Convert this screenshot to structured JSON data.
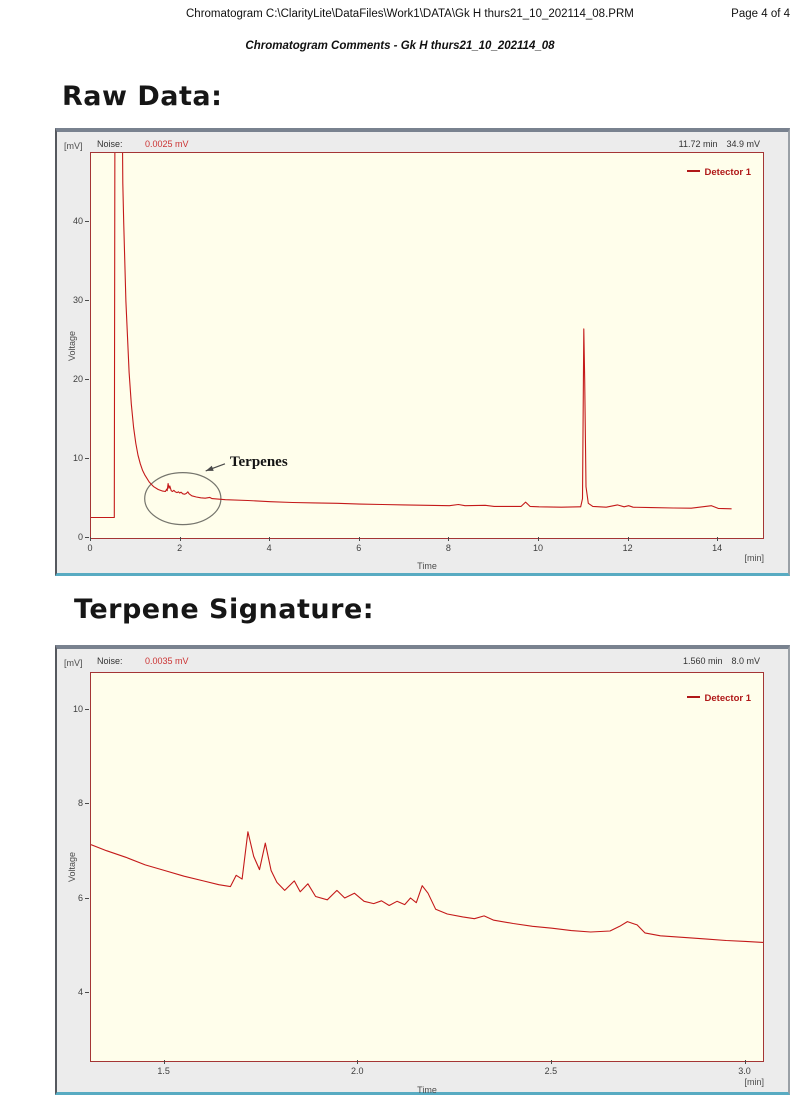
{
  "page": {
    "header_title": "Chromatogram C:\\ClarityLite\\DataFiles\\Work1\\DATA\\Gk H thurs21_10_202114_08.PRM",
    "page_number": "Page 4 of 4",
    "subtitle": "Chromatogram Comments - Gk H thurs21_10_202114_08",
    "section1_heading": "Raw Data:",
    "section2_heading": "Terpene Signature:"
  },
  "colors": {
    "trace": "#c41a1a",
    "plot_background": "#fffeeb",
    "plot_border": "#a43535",
    "panel_background": "#ececec",
    "legend_text": "#b01818",
    "noise_value_text": "#cc3333",
    "annotation_stroke": "#75756d"
  },
  "chart_data": [
    {
      "type": "line",
      "title": "Raw data chromatogram",
      "unit_label": "[mV]",
      "noise_label": "Noise:",
      "noise_value": "0.0025 mV",
      "cursor": {
        "time": "11.72 min",
        "value": "34.9 mV"
      },
      "ylabel": "Voltage",
      "xlabel": "Time",
      "x_unit": "[min]",
      "xlim": [
        0,
        15.0
      ],
      "ylim": [
        0,
        48.8
      ],
      "xticks": [
        0,
        2,
        4,
        6,
        8,
        10,
        12,
        14
      ],
      "xtick_labels": [
        "0",
        "2",
        "4",
        "6",
        "8",
        "10",
        "12",
        "14"
      ],
      "yticks": [
        0,
        10,
        20,
        30,
        40
      ],
      "ytick_labels": [
        "0",
        "10",
        "20",
        "30",
        "40"
      ],
      "grid": false,
      "legend_position": "top-right",
      "annotation": {
        "label": "Terpenes",
        "ellipse_center": [
          2.05,
          5.0
        ],
        "ellipse_radii": [
          0.85,
          3.3
        ],
        "arrow_from": [
          2.99,
          9.4
        ],
        "arrow_to": [
          2.56,
          8.5
        ],
        "label_pos": [
          3.1,
          10.7
        ]
      },
      "series": [
        {
          "name": "Detector 1",
          "color": "#c41a1a",
          "points": [
            [
              0,
              2.6
            ],
            [
              0.3,
              2.6
            ],
            [
              0.52,
              2.6
            ],
            [
              0.535,
              60
            ],
            [
              0.69,
              60
            ],
            [
              0.71,
              45
            ],
            [
              0.73,
              40
            ],
            [
              0.78,
              30
            ],
            [
              0.85,
              21
            ],
            [
              0.9,
              17
            ],
            [
              0.95,
              14
            ],
            [
              1.0,
              12
            ],
            [
              1.05,
              10.5
            ],
            [
              1.1,
              9.4
            ],
            [
              1.15,
              8.6
            ],
            [
              1.2,
              8.0
            ],
            [
              1.3,
              7.1
            ],
            [
              1.4,
              6.5
            ],
            [
              1.5,
              6.15
            ],
            [
              1.6,
              5.95
            ],
            [
              1.66,
              5.9
            ],
            [
              1.69,
              6.2
            ],
            [
              1.7,
              6.0
            ],
            [
              1.72,
              6.9
            ],
            [
              1.74,
              6.3
            ],
            [
              1.76,
              6.6
            ],
            [
              1.79,
              6.0
            ],
            [
              1.82,
              5.9
            ],
            [
              1.85,
              6.05
            ],
            [
              1.88,
              5.85
            ],
            [
              1.92,
              5.75
            ],
            [
              1.95,
              5.85
            ],
            [
              1.98,
              5.7
            ],
            [
              2.01,
              5.8
            ],
            [
              2.05,
              5.6
            ],
            [
              2.09,
              5.55
            ],
            [
              2.13,
              5.65
            ],
            [
              2.16,
              5.85
            ],
            [
              2.19,
              5.6
            ],
            [
              2.25,
              5.35
            ],
            [
              2.35,
              5.2
            ],
            [
              2.45,
              5.1
            ],
            [
              2.55,
              5.05
            ],
            [
              2.65,
              5.15
            ],
            [
              2.7,
              5.0
            ],
            [
              2.8,
              4.95
            ],
            [
              3.0,
              4.85
            ],
            [
              3.5,
              4.75
            ],
            [
              4.0,
              4.6
            ],
            [
              4.5,
              4.5
            ],
            [
              5.0,
              4.45
            ],
            [
              5.5,
              4.4
            ],
            [
              6.0,
              4.3
            ],
            [
              6.5,
              4.25
            ],
            [
              7.0,
              4.2
            ],
            [
              7.5,
              4.15
            ],
            [
              8.0,
              4.1
            ],
            [
              8.2,
              4.25
            ],
            [
              8.35,
              4.1
            ],
            [
              8.8,
              4.15
            ],
            [
              9.0,
              4.0
            ],
            [
              9.6,
              4.0
            ],
            [
              9.7,
              4.55
            ],
            [
              9.8,
              4.0
            ],
            [
              10.0,
              3.95
            ],
            [
              10.5,
              3.9
            ],
            [
              10.9,
              3.95
            ],
            [
              10.93,
              3.95
            ],
            [
              10.97,
              5.0
            ],
            [
              11.0,
              26.5
            ],
            [
              11.02,
              20.0
            ],
            [
              11.05,
              6.5
            ],
            [
              11.1,
              4.4
            ],
            [
              11.2,
              4.0
            ],
            [
              11.5,
              3.9
            ],
            [
              11.75,
              4.2
            ],
            [
              11.9,
              3.95
            ],
            [
              12.0,
              4.1
            ],
            [
              12.1,
              3.9
            ],
            [
              12.5,
              3.85
            ],
            [
              13.0,
              3.8
            ],
            [
              13.4,
              3.78
            ],
            [
              13.85,
              4.1
            ],
            [
              14.0,
              3.75
            ],
            [
              14.3,
              3.7
            ]
          ]
        }
      ]
    },
    {
      "type": "line",
      "title": "Terpene signature chromatogram",
      "unit_label": "[mV]",
      "noise_label": "Noise:",
      "noise_value": "0.0035 mV",
      "cursor": {
        "time": "1.560 min",
        "value": "8.0 mV"
      },
      "ylabel": "Voltage",
      "xlabel": "Time",
      "x_unit": "[min]",
      "xlim": [
        1.31,
        3.045
      ],
      "ylim": [
        2.57,
        10.78
      ],
      "xticks": [
        1.5,
        2.0,
        2.5,
        3.0
      ],
      "xtick_labels": [
        "1.5",
        "2.0",
        "2.5",
        "3.0"
      ],
      "yticks": [
        4,
        6,
        8,
        10
      ],
      "ytick_labels": [
        "4",
        "6",
        "8",
        "10"
      ],
      "grid": false,
      "legend_position": "top-right",
      "series": [
        {
          "name": "Detector 1",
          "color": "#c41a1a",
          "points": [
            [
              1.31,
              7.15
            ],
            [
              1.35,
              7.02
            ],
            [
              1.4,
              6.88
            ],
            [
              1.45,
              6.72
            ],
            [
              1.5,
              6.6
            ],
            [
              1.55,
              6.48
            ],
            [
              1.6,
              6.38
            ],
            [
              1.64,
              6.3
            ],
            [
              1.67,
              6.26
            ],
            [
              1.685,
              6.5
            ],
            [
              1.7,
              6.42
            ],
            [
              1.715,
              7.42
            ],
            [
              1.73,
              6.9
            ],
            [
              1.745,
              6.62
            ],
            [
              1.76,
              7.18
            ],
            [
              1.775,
              6.6
            ],
            [
              1.79,
              6.35
            ],
            [
              1.81,
              6.18
            ],
            [
              1.835,
              6.38
            ],
            [
              1.85,
              6.15
            ],
            [
              1.87,
              6.32
            ],
            [
              1.89,
              6.05
            ],
            [
              1.92,
              5.98
            ],
            [
              1.945,
              6.18
            ],
            [
              1.965,
              6.02
            ],
            [
              1.99,
              6.12
            ],
            [
              2.015,
              5.95
            ],
            [
              2.04,
              5.9
            ],
            [
              2.06,
              5.96
            ],
            [
              2.08,
              5.86
            ],
            [
              2.1,
              5.95
            ],
            [
              2.12,
              5.88
            ],
            [
              2.135,
              6.02
            ],
            [
              2.15,
              5.92
            ],
            [
              2.165,
              6.28
            ],
            [
              2.18,
              6.12
            ],
            [
              2.2,
              5.78
            ],
            [
              2.23,
              5.68
            ],
            [
              2.27,
              5.62
            ],
            [
              2.3,
              5.58
            ],
            [
              2.325,
              5.64
            ],
            [
              2.35,
              5.55
            ],
            [
              2.4,
              5.48
            ],
            [
              2.45,
              5.42
            ],
            [
              2.5,
              5.38
            ],
            [
              2.55,
              5.33
            ],
            [
              2.6,
              5.3
            ],
            [
              2.65,
              5.32
            ],
            [
              2.675,
              5.42
            ],
            [
              2.695,
              5.52
            ],
            [
              2.72,
              5.45
            ],
            [
              2.74,
              5.28
            ],
            [
              2.78,
              5.22
            ],
            [
              2.85,
              5.18
            ],
            [
              2.9,
              5.15
            ],
            [
              2.95,
              5.12
            ],
            [
              3.0,
              5.1
            ],
            [
              3.045,
              5.08
            ]
          ]
        }
      ]
    }
  ]
}
